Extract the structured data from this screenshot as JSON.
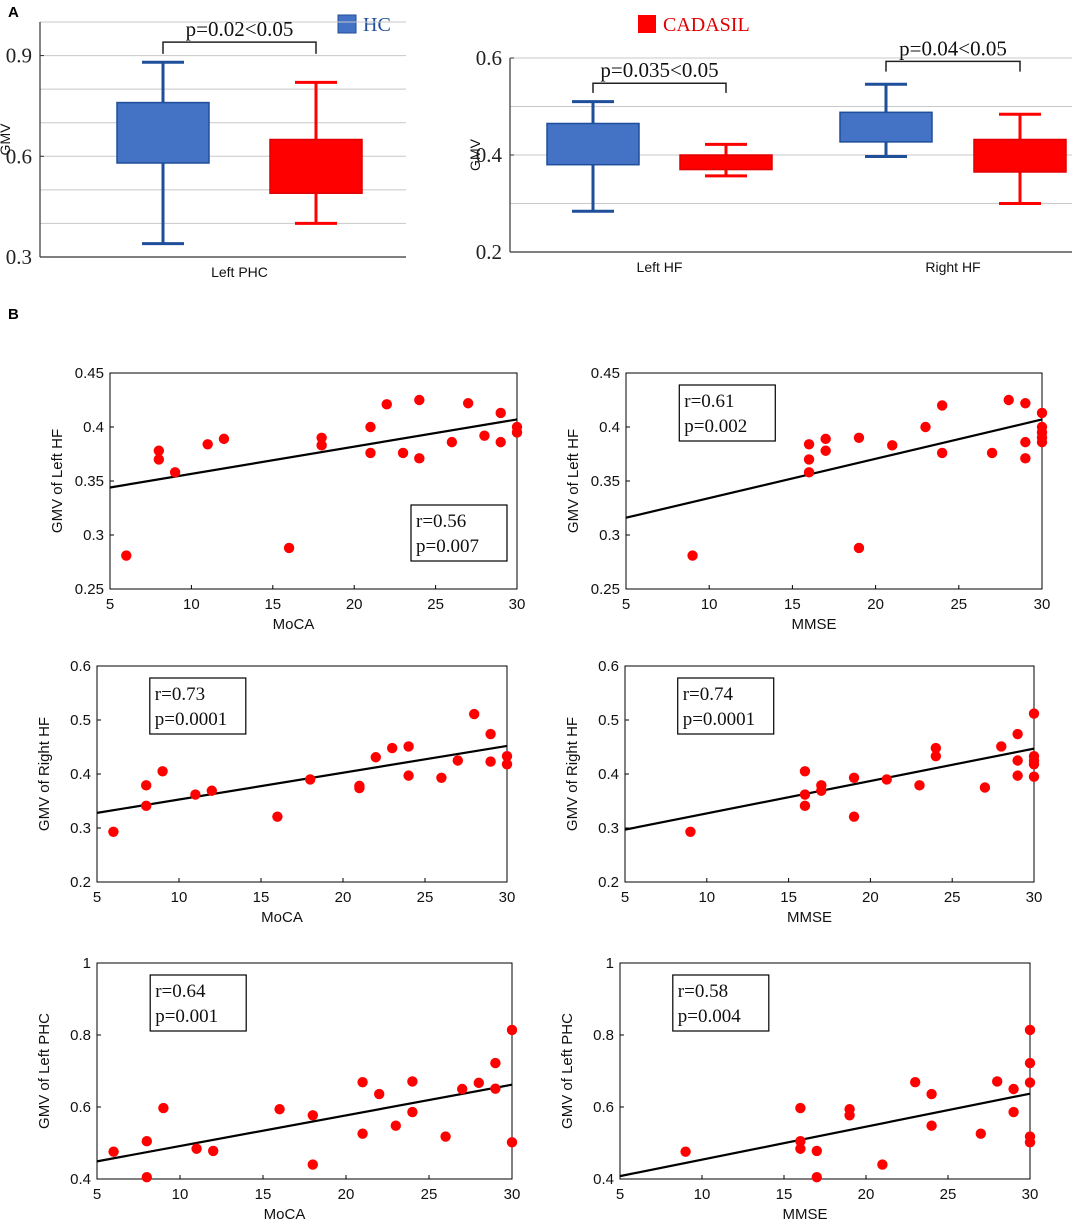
{
  "figure": {
    "panel_labels": {
      "a": "A",
      "b": "B"
    },
    "legend": {
      "items": [
        {
          "name": "HC",
          "color": "#4472c4",
          "edge": "#1f4e9a"
        },
        {
          "name": "CADASIL",
          "color": "#ff0000",
          "edge": "#e00000"
        }
      ]
    }
  },
  "chart_data": [
    {
      "id": "box_phc",
      "type": "box",
      "ylabel": "GMV",
      "ylim": [
        0.3,
        1.0
      ],
      "yticks": [
        0.3,
        0.6,
        0.9
      ],
      "ytick_labels": [
        "0.3",
        "0.6",
        "0.9"
      ],
      "gridlines": [
        0.4,
        0.5,
        0.6,
        0.7,
        0.8,
        0.9,
        1.0
      ],
      "categories": [
        "Left PHC"
      ],
      "series": [
        {
          "name": "HC",
          "boxes": [
            {
              "whisker_low": 0.34,
              "q1": 0.58,
              "q3": 0.76,
              "whisker_high": 0.88
            }
          ]
        },
        {
          "name": "CADASIL",
          "boxes": [
            {
              "whisker_low": 0.4,
              "q1": 0.49,
              "q3": 0.65,
              "whisker_high": 0.82
            }
          ]
        }
      ],
      "annotations": [
        {
          "text": "p=0.02<0.05",
          "group": 0,
          "bracket_y": 0.94,
          "tick_bottom": 0.905
        }
      ]
    },
    {
      "id": "box_hf",
      "type": "box",
      "ylabel": "GMV",
      "ylim": [
        0.2,
        0.6
      ],
      "yticks": [
        0.2,
        0.4,
        0.6
      ],
      "ytick_labels": [
        "0.2",
        "0.4",
        "0.6"
      ],
      "gridlines": [
        0.3,
        0.4,
        0.5,
        0.6
      ],
      "categories": [
        "Left HF",
        "Right HF"
      ],
      "series": [
        {
          "name": "HC",
          "boxes": [
            {
              "whisker_low": 0.284,
              "q1": 0.38,
              "q3": 0.465,
              "whisker_high": 0.51
            },
            {
              "whisker_low": 0.397,
              "q1": 0.427,
              "q3": 0.488,
              "whisker_high": 0.546
            }
          ]
        },
        {
          "name": "CADASIL",
          "boxes": [
            {
              "whisker_low": 0.357,
              "q1": 0.37,
              "q3": 0.4,
              "whisker_high": 0.422
            },
            {
              "whisker_low": 0.3,
              "q1": 0.365,
              "q3": 0.432,
              "whisker_high": 0.484
            }
          ]
        }
      ],
      "annotations": [
        {
          "text": "p=0.035<0.05",
          "group": 0,
          "bracket_y": 0.548,
          "tick_bottom": 0.528
        },
        {
          "text": "p=0.04<0.05",
          "group": 1,
          "bracket_y": 0.593,
          "tick_bottom": 0.572
        }
      ]
    },
    {
      "id": "sc1",
      "type": "scatter",
      "xlabel": "MoCA",
      "ylabel": "GMV of Left HF",
      "xlim": [
        5,
        30
      ],
      "ylim": [
        0.25,
        0.45
      ],
      "xticks": [
        5,
        10,
        15,
        20,
        25,
        30
      ],
      "yticks": [
        0.25,
        0.3,
        0.35,
        0.4,
        0.45
      ],
      "ytick_labels": [
        "0.25",
        "0.3",
        "0.35",
        "0.4",
        "0.45"
      ],
      "x": [
        6,
        8,
        8,
        9,
        11,
        12,
        16,
        18,
        18,
        21,
        21,
        22,
        23,
        24,
        24,
        26,
        27,
        28,
        29,
        29,
        30,
        30
      ],
      "y": [
        0.281,
        0.378,
        0.37,
        0.358,
        0.384,
        0.389,
        0.288,
        0.39,
        0.383,
        0.4,
        0.376,
        0.421,
        0.376,
        0.425,
        0.371,
        0.386,
        0.422,
        0.392,
        0.413,
        0.386,
        0.4,
        0.395
      ],
      "fit": {
        "x": [
          5,
          30
        ],
        "y": [
          0.344,
          0.407
        ]
      },
      "stats": {
        "r": "r=0.56",
        "p": "p=0.007"
      },
      "stats_pos": "bottom-right"
    },
    {
      "id": "sc2",
      "type": "scatter",
      "xlabel": "MMSE",
      "ylabel": "GMV of Left HF",
      "xlim": [
        5,
        30
      ],
      "ylim": [
        0.25,
        0.45
      ],
      "xticks": [
        5,
        10,
        15,
        20,
        25,
        30
      ],
      "yticks": [
        0.25,
        0.3,
        0.35,
        0.4,
        0.45
      ],
      "ytick_labels": [
        "0.25",
        "0.3",
        "0.35",
        "0.4",
        "0.45"
      ],
      "x": [
        9,
        16,
        16,
        16,
        17,
        17,
        19,
        19,
        21,
        23,
        24,
        24,
        27,
        28,
        29,
        29,
        29,
        30,
        30,
        30,
        30,
        30
      ],
      "y": [
        0.281,
        0.384,
        0.37,
        0.358,
        0.389,
        0.378,
        0.39,
        0.288,
        0.383,
        0.4,
        0.42,
        0.376,
        0.376,
        0.425,
        0.422,
        0.386,
        0.371,
        0.413,
        0.4,
        0.395,
        0.39,
        0.386
      ],
      "fit": {
        "x": [
          5,
          30
        ],
        "y": [
          0.316,
          0.407
        ]
      },
      "stats": {
        "r": "r=0.61",
        "p": "p=0.002"
      },
      "stats_pos": "top-left"
    },
    {
      "id": "sc3",
      "type": "scatter",
      "xlabel": "MoCA",
      "ylabel": "GMV of Right HF",
      "xlim": [
        5,
        30
      ],
      "ylim": [
        0.2,
        0.6
      ],
      "xticks": [
        5,
        10,
        15,
        20,
        25,
        30
      ],
      "yticks": [
        0.2,
        0.3,
        0.4,
        0.5,
        0.6
      ],
      "ytick_labels": [
        "0.2",
        "0.3",
        "0.4",
        "0.5",
        "0.6"
      ],
      "x": [
        6,
        8,
        8,
        9,
        11,
        12,
        16,
        18,
        21,
        21,
        22,
        23,
        24,
        24,
        26,
        27,
        28,
        29,
        29,
        30,
        30
      ],
      "y": [
        0.293,
        0.379,
        0.341,
        0.405,
        0.362,
        0.369,
        0.321,
        0.39,
        0.378,
        0.374,
        0.431,
        0.448,
        0.451,
        0.397,
        0.393,
        0.425,
        0.511,
        0.474,
        0.423,
        0.433,
        0.418
      ],
      "fit": {
        "x": [
          5,
          30
        ],
        "y": [
          0.328,
          0.452
        ]
      },
      "stats": {
        "r": "r=0.73",
        "p": "p=0.0001"
      },
      "stats_pos": "top-left"
    },
    {
      "id": "sc4",
      "type": "scatter",
      "xlabel": "MMSE",
      "ylabel": "GMV of Right HF",
      "xlim": [
        5,
        30
      ],
      "ylim": [
        0.2,
        0.6
      ],
      "xticks": [
        5,
        10,
        15,
        20,
        25,
        30
      ],
      "yticks": [
        0.2,
        0.3,
        0.4,
        0.5,
        0.6
      ],
      "ytick_labels": [
        "0.2",
        "0.3",
        "0.4",
        "0.5",
        "0.6"
      ],
      "x": [
        9,
        16,
        16,
        16,
        17,
        17,
        19,
        19,
        21,
        23,
        24,
        24,
        27,
        28,
        29,
        29,
        29,
        30,
        30,
        30,
        30,
        30
      ],
      "y": [
        0.293,
        0.405,
        0.362,
        0.341,
        0.379,
        0.369,
        0.393,
        0.321,
        0.39,
        0.379,
        0.448,
        0.433,
        0.375,
        0.451,
        0.474,
        0.425,
        0.397,
        0.512,
        0.433,
        0.425,
        0.418,
        0.395
      ],
      "fit": {
        "x": [
          5,
          30
        ],
        "y": [
          0.297,
          0.447
        ]
      },
      "stats": {
        "r": "r=0.74",
        "p": "p=0.0001"
      },
      "stats_pos": "top-left"
    },
    {
      "id": "sc5",
      "type": "scatter",
      "xlabel": "MoCA",
      "ylabel": "GMV of Left PHC",
      "xlim": [
        5,
        30
      ],
      "ylim": [
        0.4,
        1.0
      ],
      "xticks": [
        5,
        10,
        15,
        20,
        25,
        30
      ],
      "yticks": [
        0.4,
        0.6,
        0.8,
        1.0
      ],
      "ytick_labels": [
        "0.4",
        "0.6",
        "0.8",
        "1"
      ],
      "x": [
        6,
        8,
        8,
        9,
        11,
        12,
        16,
        18,
        18,
        21,
        21,
        22,
        23,
        24,
        24,
        26,
        27,
        28,
        29,
        29,
        30,
        30
      ],
      "y": [
        0.476,
        0.505,
        0.405,
        0.597,
        0.484,
        0.478,
        0.594,
        0.577,
        0.44,
        0.669,
        0.526,
        0.636,
        0.548,
        0.671,
        0.586,
        0.518,
        0.65,
        0.667,
        0.722,
        0.651,
        0.814,
        0.502
      ],
      "fit": {
        "x": [
          5,
          30
        ],
        "y": [
          0.449,
          0.662
        ]
      },
      "stats": {
        "r": "r=0.64",
        "p": "p=0.001"
      },
      "stats_pos": "top-left"
    },
    {
      "id": "sc6",
      "type": "scatter",
      "xlabel": "MMSE",
      "ylabel": "GMV of Left PHC",
      "xlim": [
        5,
        30
      ],
      "ylim": [
        0.4,
        1.0
      ],
      "xticks": [
        5,
        10,
        15,
        20,
        25,
        30
      ],
      "yticks": [
        0.4,
        0.6,
        0.8,
        1.0
      ],
      "ytick_labels": [
        "0.4",
        "0.6",
        "0.8",
        "1"
      ],
      "x": [
        9,
        16,
        16,
        16,
        17,
        17,
        19,
        19,
        21,
        23,
        24,
        24,
        27,
        28,
        29,
        29,
        30,
        30,
        30,
        30,
        30
      ],
      "y": [
        0.476,
        0.597,
        0.505,
        0.484,
        0.478,
        0.405,
        0.594,
        0.577,
        0.44,
        0.669,
        0.636,
        0.548,
        0.526,
        0.671,
        0.65,
        0.586,
        0.814,
        0.722,
        0.668,
        0.518,
        0.502
      ],
      "fit": {
        "x": [
          5,
          30
        ],
        "y": [
          0.408,
          0.637
        ]
      },
      "stats": {
        "r": "r=0.58",
        "p": "p=0.004"
      },
      "stats_pos": "top-left"
    }
  ]
}
